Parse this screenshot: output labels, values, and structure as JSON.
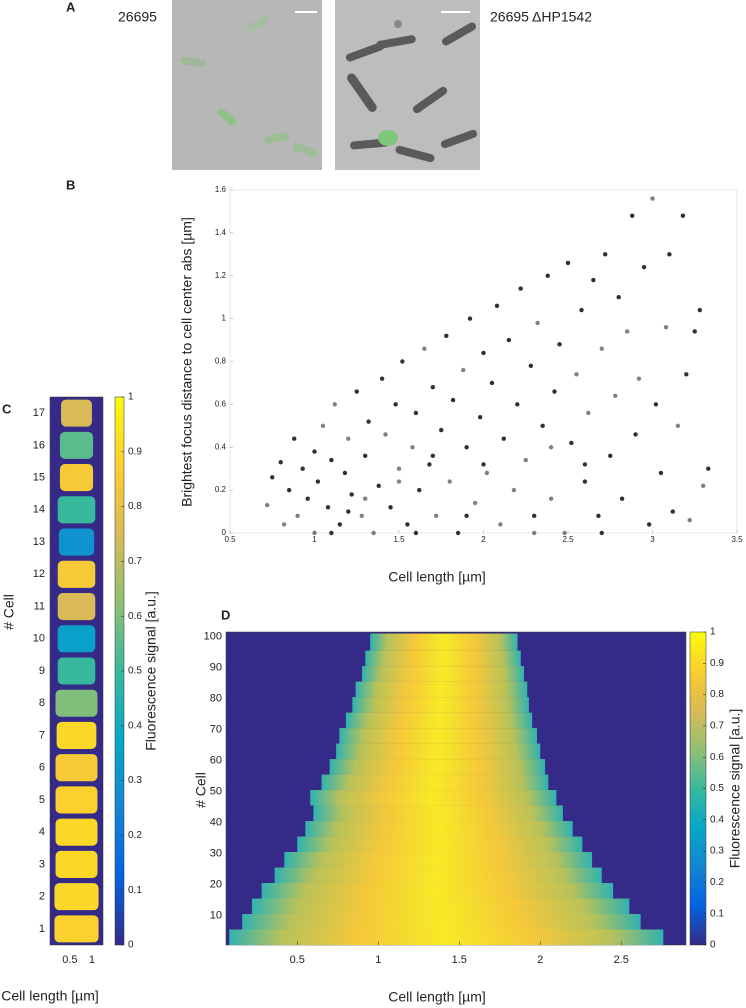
{
  "figure": {
    "panel_labels": [
      "A",
      "B",
      "C",
      "D"
    ],
    "image_labels": [
      "26695",
      "26695 ΔHP1542"
    ]
  },
  "chart_data": [
    {
      "type": "scatter",
      "y_label": "Brightest focus distance to cell center abs [µm]",
      "x_label": "Cell length [µm]",
      "x": [
        0.72,
        0.75,
        0.8,
        0.82,
        0.85,
        0.88,
        0.9,
        0.93,
        0.96,
        1.0,
        1.0,
        1.02,
        1.05,
        1.08,
        1.1,
        1.12,
        1.15,
        1.18,
        1.2,
        1.22,
        1.25,
        1.28,
        1.3,
        1.32,
        1.35,
        1.38,
        1.4,
        1.42,
        1.45,
        1.48,
        1.5,
        1.52,
        1.55,
        1.58,
        1.6,
        1.62,
        1.65,
        1.68,
        1.7,
        1.72,
        1.75,
        1.78,
        1.8,
        1.82,
        1.85,
        1.88,
        1.9,
        1.92,
        1.95,
        1.98,
        2.0,
        2.02,
        2.05,
        2.08,
        2.1,
        2.12,
        2.15,
        2.18,
        2.2,
        2.22,
        2.25,
        2.28,
        2.3,
        2.32,
        2.35,
        2.38,
        2.4,
        2.42,
        2.45,
        2.48,
        2.5,
        2.52,
        2.55,
        2.58,
        2.6,
        2.62,
        2.65,
        2.68,
        2.7,
        2.72,
        2.75,
        2.78,
        2.8,
        2.82,
        2.85,
        2.88,
        2.9,
        2.92,
        2.95,
        2.98,
        3.0,
        3.02,
        3.05,
        3.08,
        3.1,
        3.12,
        3.15,
        3.18,
        3.2,
        3.22,
        3.25,
        3.28,
        3.3,
        3.33,
        1.1,
        1.3,
        1.6,
        1.9,
        2.3,
        2.7,
        1.2,
        1.5,
        1.7,
        2.0,
        2.4,
        2.6
      ],
      "y": [
        0.13,
        0.26,
        0.33,
        0.04,
        0.2,
        0.44,
        0.08,
        0.3,
        0.16,
        0.0,
        0.38,
        0.24,
        0.5,
        0.12,
        0.34,
        0.6,
        0.04,
        0.28,
        0.44,
        0.18,
        0.66,
        0.08,
        0.36,
        0.52,
        0.0,
        0.22,
        0.72,
        0.46,
        0.12,
        0.6,
        0.3,
        0.8,
        0.04,
        0.4,
        0.56,
        0.2,
        0.86,
        0.32,
        0.68,
        0.08,
        0.48,
        0.92,
        0.24,
        0.62,
        0.0,
        0.76,
        0.4,
        1.0,
        0.14,
        0.54,
        0.84,
        0.28,
        0.7,
        1.06,
        0.04,
        0.44,
        0.9,
        0.2,
        0.6,
        1.14,
        0.34,
        0.78,
        0.08,
        0.98,
        0.5,
        1.2,
        0.16,
        0.66,
        0.88,
        0.0,
        1.26,
        0.42,
        0.74,
        1.04,
        0.24,
        0.56,
        1.18,
        0.08,
        0.86,
        1.3,
        0.36,
        0.64,
        1.1,
        0.16,
        0.94,
        1.48,
        0.46,
        0.72,
        1.24,
        0.04,
        1.56,
        0.6,
        0.28,
        0.96,
        1.3,
        0.1,
        0.5,
        1.48,
        0.74,
        0.06,
        0.94,
        1.04,
        0.22,
        0.3,
        0.0,
        0.16,
        0.0,
        0.08,
        0.0,
        0.0,
        0.1,
        0.24,
        0.36,
        0.32,
        0.4,
        0.32
      ],
      "color": "#1a1a1a",
      "xlim": [
        0.5,
        3.5
      ],
      "xticks": [
        0.5,
        1,
        1.5,
        2,
        2.5,
        3,
        3.5
      ],
      "ylim": [
        0,
        1.6
      ],
      "yticks": [
        0,
        0.2,
        0.4,
        0.6,
        0.8,
        1,
        1.2,
        1.4,
        1.6
      ]
    },
    {
      "type": "cell-map",
      "y_label": "# Cell",
      "x_label": "Cell length [µm]",
      "cells": [
        1,
        2,
        3,
        4,
        5,
        6,
        7,
        8,
        9,
        10,
        11,
        12,
        13,
        14,
        15,
        16,
        17
      ],
      "lengths": [
        1.0,
        1.0,
        0.95,
        0.95,
        0.95,
        0.95,
        0.9,
        0.95,
        0.85,
        0.85,
        0.85,
        0.85,
        0.8,
        0.85,
        0.75,
        0.75,
        0.7
      ],
      "values": [
        0.88,
        0.9,
        0.9,
        0.9,
        0.88,
        0.85,
        0.9,
        0.6,
        0.5,
        0.35,
        0.75,
        0.85,
        0.3,
        0.5,
        0.85,
        0.55,
        0.75
      ],
      "xlim": [
        0.05,
        1.25
      ],
      "xticks": [
        0.5,
        1
      ],
      "ylim": [
        0.5,
        17.5
      ],
      "yticks": [
        1,
        2,
        3,
        4,
        5,
        6,
        7,
        8,
        9,
        10,
        11,
        12,
        13,
        14,
        15,
        16,
        17
      ],
      "colorbar": {
        "label": "Fluorescence signal [a.u.]",
        "lim": [
          0,
          1
        ],
        "ticks": [
          0,
          0.1,
          0.2,
          0.3,
          0.4,
          0.5,
          0.6,
          0.7,
          0.8,
          0.9,
          1
        ]
      }
    },
    {
      "type": "row-map",
      "y_label": "# Cell",
      "x_label": "Cell length [µm]",
      "cells": [
        1,
        6,
        11,
        16,
        21,
        26,
        31,
        36,
        41,
        46,
        51,
        56,
        61,
        66,
        71,
        76,
        81,
        86,
        91,
        96
      ],
      "starts": [
        0.08,
        0.16,
        0.22,
        0.28,
        0.36,
        0.42,
        0.5,
        0.55,
        0.6,
        0.58,
        0.65,
        0.7,
        0.74,
        0.76,
        0.8,
        0.84,
        0.86,
        0.9,
        0.92,
        0.95
      ],
      "ends": [
        2.76,
        2.62,
        2.55,
        2.45,
        2.38,
        2.32,
        2.26,
        2.2,
        2.14,
        2.1,
        2.05,
        2.03,
        2.0,
        1.98,
        1.95,
        1.93,
        1.92,
        1.9,
        1.88,
        1.86
      ],
      "xlim": [
        0.06,
        2.9
      ],
      "xticks": [
        0.5,
        1,
        1.5,
        2,
        2.5
      ],
      "ylim": [
        0.5,
        101.5
      ],
      "yticks": [
        10,
        20,
        30,
        40,
        50,
        60,
        70,
        80,
        90,
        100
      ],
      "colorbar": {
        "label": "Fluorescence signal [a.u.]",
        "lim": [
          0,
          1
        ],
        "ticks": [
          0,
          0.1,
          0.2,
          0.3,
          0.4,
          0.5,
          0.6,
          0.7,
          0.8,
          0.9,
          1
        ]
      }
    }
  ]
}
